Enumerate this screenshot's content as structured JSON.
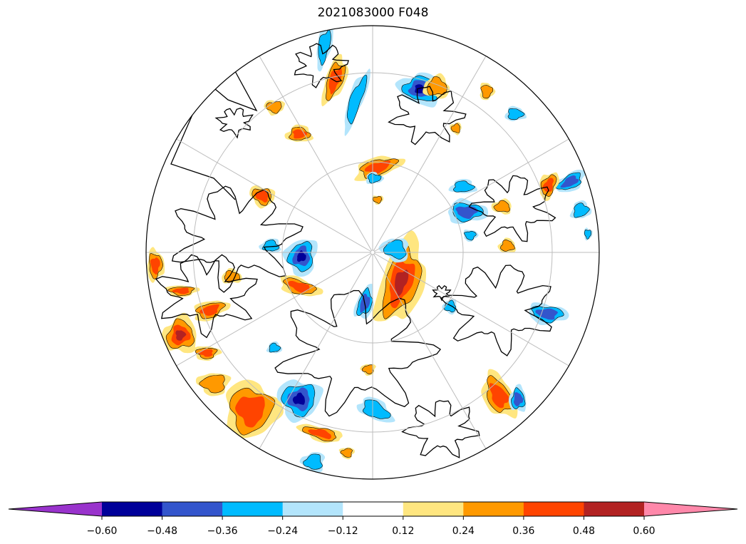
{
  "title": "2021083000 F048",
  "colorbar": {
    "extend": "both",
    "levels": [
      -0.6,
      -0.48,
      -0.36,
      -0.24,
      -0.12,
      0.12,
      0.24,
      0.36,
      0.48,
      0.6
    ],
    "tick_labels": [
      "−0.60",
      "−0.48",
      "−0.36",
      "−0.24",
      "−0.12",
      "0.12",
      "0.24",
      "0.36",
      "0.48",
      "0.60"
    ],
    "colors": [
      "#9933cc",
      "#000099",
      "#3355cc",
      "#00bbff",
      "#b3e5fc",
      "#ffffff",
      "#ffe680",
      "#ff9900",
      "#ff4400",
      "#b22222",
      "#ff88aa"
    ]
  },
  "map": {
    "projection": "north-polar-stereographic",
    "graticule": true,
    "coastlines": true,
    "borders": true
  }
}
